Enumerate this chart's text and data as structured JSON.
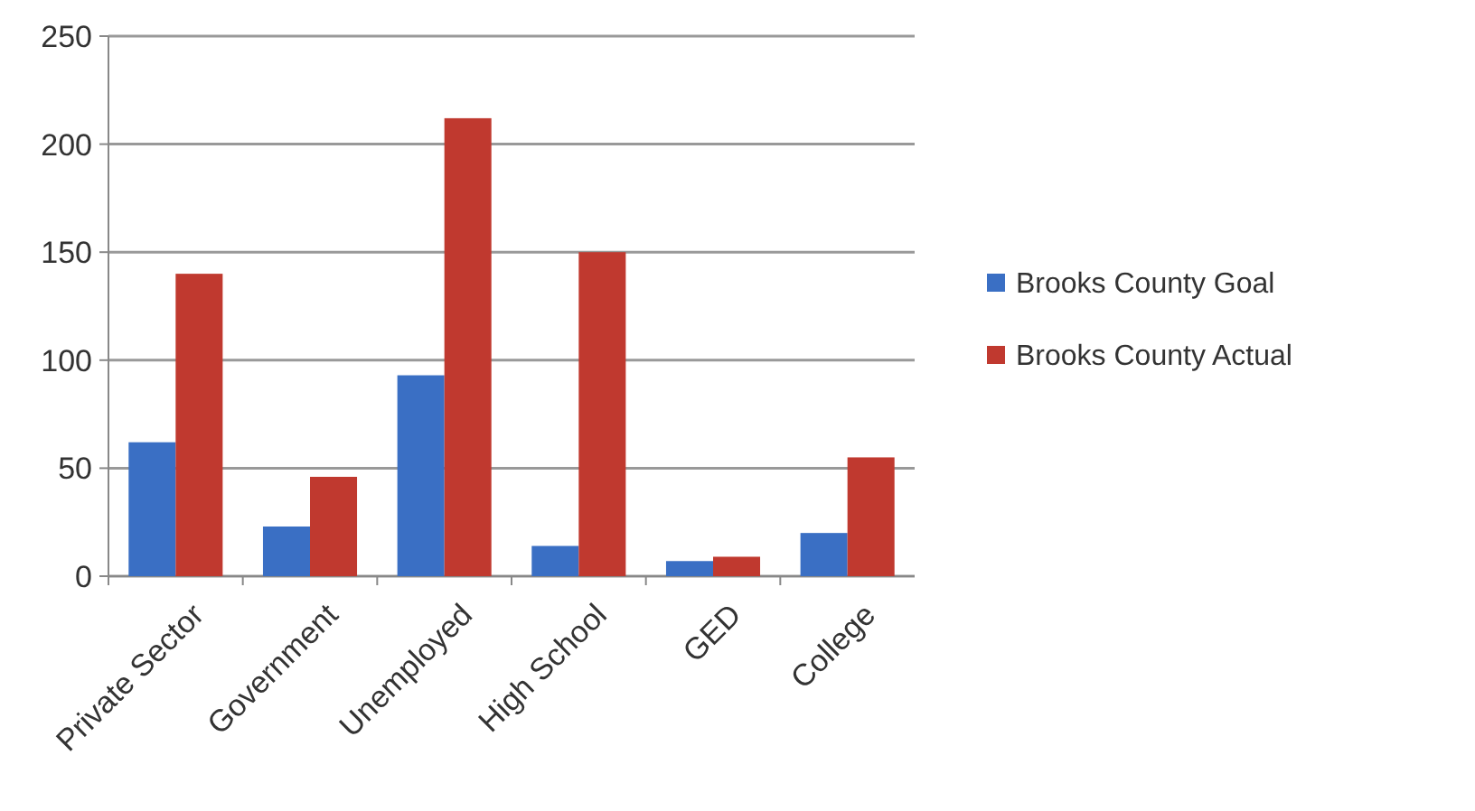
{
  "chart_data": {
    "type": "bar",
    "categories": [
      "Private Sector",
      "Government",
      "Unemployed",
      "High School",
      "GED",
      "College"
    ],
    "series": [
      {
        "name": "Brooks County Goal",
        "color": "#3a6fc4",
        "values": [
          62,
          23,
          93,
          14,
          7,
          20
        ]
      },
      {
        "name": "Brooks County Actual",
        "color": "#c0392f",
        "values": [
          140,
          46,
          212,
          150,
          9,
          55
        ]
      }
    ],
    "ylim": [
      0,
      250
    ],
    "yticks": [
      0,
      50,
      100,
      150,
      200,
      250
    ],
    "grid": "y",
    "legend": "right"
  }
}
